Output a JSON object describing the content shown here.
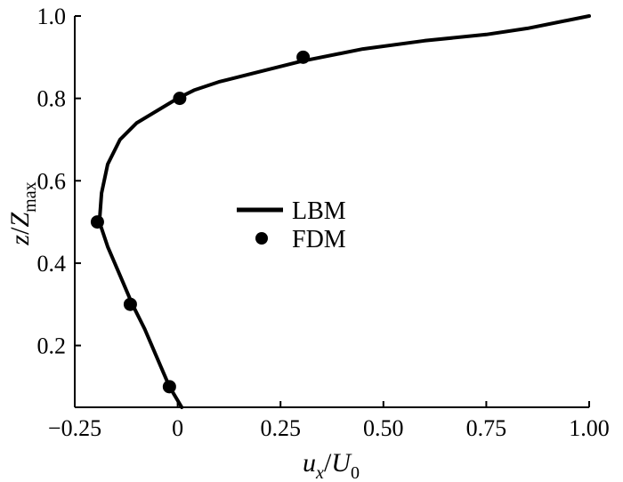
{
  "chart_data": {
    "type": "line",
    "title": "",
    "xlabel": "u_x/U_0",
    "ylabel": "z/Z_max",
    "xlim": [
      -0.25,
      1.0
    ],
    "ylim": [
      0.05,
      1.0
    ],
    "x_ticks": [
      -0.25,
      0,
      0.25,
      0.5,
      0.75,
      1.0
    ],
    "x_tick_labels": [
      "−0.25",
      "0",
      "0.25",
      "0.50",
      "0.75",
      "1.00"
    ],
    "y_ticks": [
      0.2,
      0.4,
      0.6,
      0.8,
      1.0
    ],
    "y_tick_labels": [
      "0.2",
      "0.4",
      "0.6",
      "0.8",
      "1.0"
    ],
    "grid": false,
    "legend_position": "center-left",
    "series": [
      {
        "name": "LBM",
        "style": "line",
        "color": "#000000",
        "x": [
          0.01,
          -0.02,
          -0.05,
          -0.08,
          -0.11,
          -0.14,
          -0.17,
          -0.19,
          -0.185,
          -0.17,
          -0.14,
          -0.1,
          -0.05,
          0.0,
          0.04,
          0.1,
          0.18,
          0.3,
          0.45,
          0.6,
          0.75,
          0.85,
          1.0
        ],
        "y": [
          0.05,
          0.1,
          0.17,
          0.24,
          0.3,
          0.37,
          0.44,
          0.5,
          0.57,
          0.64,
          0.7,
          0.74,
          0.77,
          0.8,
          0.82,
          0.84,
          0.86,
          0.89,
          0.92,
          0.94,
          0.955,
          0.97,
          1.0
        ]
      },
      {
        "name": "FDM",
        "style": "markers",
        "color": "#000000",
        "x": [
          -0.02,
          -0.115,
          -0.195,
          0.005,
          0.305
        ],
        "y": [
          0.1,
          0.3,
          0.5,
          0.8,
          0.9
        ]
      }
    ]
  }
}
